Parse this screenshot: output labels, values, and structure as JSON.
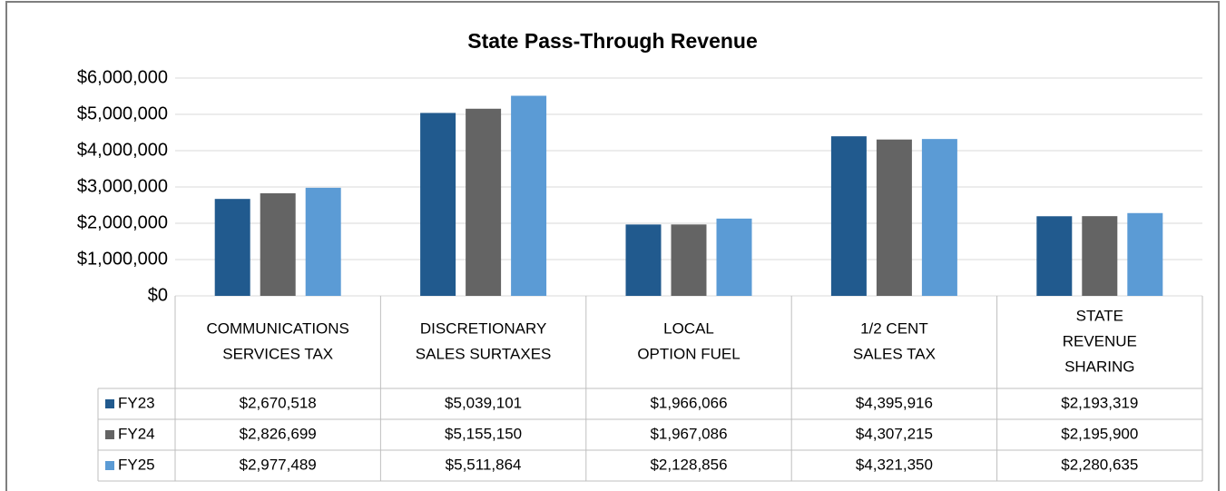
{
  "chart_data": {
    "type": "bar",
    "title": "State Pass-Through Revenue",
    "categories": [
      [
        "COMMUNICATIONS",
        "SERVICES TAX"
      ],
      [
        "DISCRETIONARY",
        "SALES SURTAXES"
      ],
      [
        "LOCAL",
        "OPTION FUEL"
      ],
      [
        "1/2 CENT",
        "SALES TAX"
      ],
      [
        "STATE",
        "REVENUE",
        "SHARING"
      ]
    ],
    "series": [
      {
        "name": "FY23",
        "color": "#215a8e",
        "values": [
          2670518,
          5039101,
          1966066,
          4395916,
          2193319
        ],
        "value_labels": [
          "$2,670,518",
          "$5,039,101",
          "$1,966,066",
          "$4,395,916",
          "$2,193,319"
        ]
      },
      {
        "name": "FY24",
        "color": "#646464",
        "values": [
          2826699,
          5155150,
          1967086,
          4307215,
          2195900
        ],
        "value_labels": [
          "$2,826,699",
          "$5,155,150",
          "$1,967,086",
          "$4,307,215",
          "$2,195,900"
        ]
      },
      {
        "name": "FY25",
        "color": "#5b9bd5",
        "values": [
          2977489,
          5511864,
          2128856,
          4321350,
          2280635
        ],
        "value_labels": [
          "$2,977,489",
          "$5,511,864",
          "$2,128,856",
          "$4,321,350",
          "$2,280,635"
        ]
      }
    ],
    "ylim": [
      0,
      6000000
    ],
    "yticks": [
      {
        "value": 0,
        "label": "$0"
      },
      {
        "value": 1000000,
        "label": "$1,000,000"
      },
      {
        "value": 2000000,
        "label": "$2,000,000"
      },
      {
        "value": 3000000,
        "label": "$3,000,000"
      },
      {
        "value": 4000000,
        "label": "$4,000,000"
      },
      {
        "value": 5000000,
        "label": "$5,000,000"
      },
      {
        "value": 6000000,
        "label": "$6,000,000"
      }
    ],
    "grid": true
  }
}
